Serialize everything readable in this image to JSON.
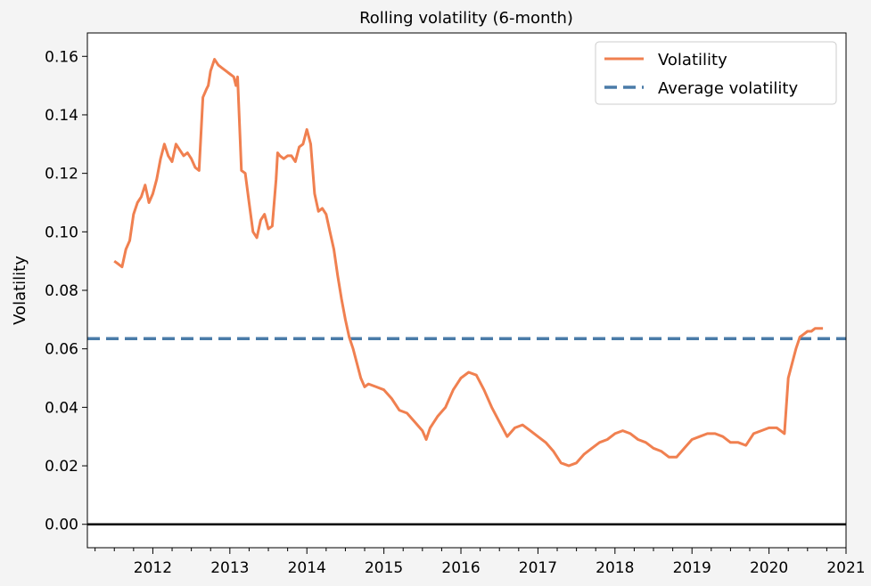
{
  "chart_data": {
    "type": "line",
    "title": "Rolling volatility (6-month)",
    "xlabel": "",
    "ylabel": "Volatility",
    "xlim": [
      2011.15,
      2021.0
    ],
    "ylim": [
      -0.008,
      0.168
    ],
    "xticks": [
      2012,
      2013,
      2014,
      2015,
      2016,
      2017,
      2018,
      2019,
      2020,
      2021
    ],
    "xtick_labels": [
      "2012",
      "2013",
      "2014",
      "2015",
      "2016",
      "2017",
      "2018",
      "2019",
      "2020",
      "2021"
    ],
    "yticks": [
      0.0,
      0.02,
      0.04,
      0.06,
      0.08,
      0.1,
      0.12,
      0.14,
      0.16
    ],
    "ytick_labels": [
      "0.00",
      "0.02",
      "0.04",
      "0.06",
      "0.08",
      "0.10",
      "0.12",
      "0.14",
      "0.16"
    ],
    "grid": false,
    "legend_position": "top-right",
    "zero_line": true,
    "series": [
      {
        "name": "Volatility",
        "color": "#f08050",
        "style": "solid",
        "x": [
          2011.5,
          2011.55,
          2011.6,
          2011.65,
          2011.7,
          2011.75,
          2011.8,
          2011.85,
          2011.9,
          2011.95,
          2012.0,
          2012.05,
          2012.1,
          2012.15,
          2012.2,
          2012.25,
          2012.3,
          2012.35,
          2012.4,
          2012.45,
          2012.5,
          2012.55,
          2012.6,
          2012.65,
          2012.7,
          2012.72,
          2012.75,
          2012.8,
          2012.85,
          2012.9,
          2012.95,
          2013.0,
          2013.05,
          2013.08,
          2013.1,
          2013.15,
          2013.2,
          2013.25,
          2013.3,
          2013.35,
          2013.4,
          2013.45,
          2013.5,
          2013.55,
          2013.6,
          2013.62,
          2013.65,
          2013.7,
          2013.75,
          2013.8,
          2013.85,
          2013.9,
          2013.95,
          2014.0,
          2014.05,
          2014.1,
          2014.15,
          2014.2,
          2014.25,
          2014.3,
          2014.35,
          2014.4,
          2014.45,
          2014.5,
          2014.55,
          2014.6,
          2014.65,
          2014.7,
          2014.75,
          2014.8,
          2014.9,
          2015.0,
          2015.1,
          2015.2,
          2015.3,
          2015.4,
          2015.5,
          2015.55,
          2015.6,
          2015.7,
          2015.8,
          2015.9,
          2016.0,
          2016.1,
          2016.2,
          2016.3,
          2016.4,
          2016.5,
          2016.6,
          2016.7,
          2016.8,
          2016.9,
          2017.0,
          2017.1,
          2017.2,
          2017.3,
          2017.4,
          2017.5,
          2017.6,
          2017.7,
          2017.8,
          2017.9,
          2018.0,
          2018.1,
          2018.2,
          2018.3,
          2018.4,
          2018.5,
          2018.6,
          2018.7,
          2018.8,
          2018.9,
          2019.0,
          2019.1,
          2019.2,
          2019.3,
          2019.4,
          2019.5,
          2019.6,
          2019.7,
          2019.8,
          2019.9,
          2020.0,
          2020.1,
          2020.15,
          2020.2,
          2020.25,
          2020.3,
          2020.35,
          2020.4,
          2020.45,
          2020.5,
          2020.55,
          2020.6,
          2020.7
        ],
        "values": [
          0.09,
          0.089,
          0.088,
          0.094,
          0.097,
          0.106,
          0.11,
          0.112,
          0.116,
          0.11,
          0.113,
          0.118,
          0.125,
          0.13,
          0.126,
          0.124,
          0.13,
          0.128,
          0.126,
          0.127,
          0.125,
          0.122,
          0.121,
          0.146,
          0.149,
          0.15,
          0.155,
          0.159,
          0.157,
          0.156,
          0.155,
          0.154,
          0.153,
          0.15,
          0.153,
          0.121,
          0.12,
          0.11,
          0.1,
          0.098,
          0.104,
          0.106,
          0.101,
          0.102,
          0.118,
          0.127,
          0.126,
          0.125,
          0.126,
          0.126,
          0.124,
          0.129,
          0.13,
          0.135,
          0.13,
          0.113,
          0.107,
          0.108,
          0.106,
          0.1,
          0.094,
          0.085,
          0.077,
          0.07,
          0.064,
          0.06,
          0.055,
          0.05,
          0.047,
          0.048,
          0.047,
          0.046,
          0.043,
          0.039,
          0.038,
          0.035,
          0.032,
          0.029,
          0.033,
          0.037,
          0.04,
          0.046,
          0.05,
          0.052,
          0.051,
          0.046,
          0.04,
          0.035,
          0.03,
          0.033,
          0.034,
          0.032,
          0.03,
          0.028,
          0.025,
          0.021,
          0.02,
          0.021,
          0.024,
          0.026,
          0.028,
          0.029,
          0.031,
          0.032,
          0.031,
          0.029,
          0.028,
          0.026,
          0.025,
          0.023,
          0.023,
          0.026,
          0.029,
          0.03,
          0.031,
          0.031,
          0.03,
          0.028,
          0.028,
          0.027,
          0.031,
          0.032,
          0.033,
          0.033,
          0.032,
          0.031,
          0.05,
          0.055,
          0.06,
          0.064,
          0.065,
          0.066,
          0.066,
          0.067,
          0.067
        ]
      },
      {
        "name": "Average volatility",
        "color": "#4a7ba8",
        "style": "dashed",
        "constant": 0.0635
      }
    ]
  }
}
